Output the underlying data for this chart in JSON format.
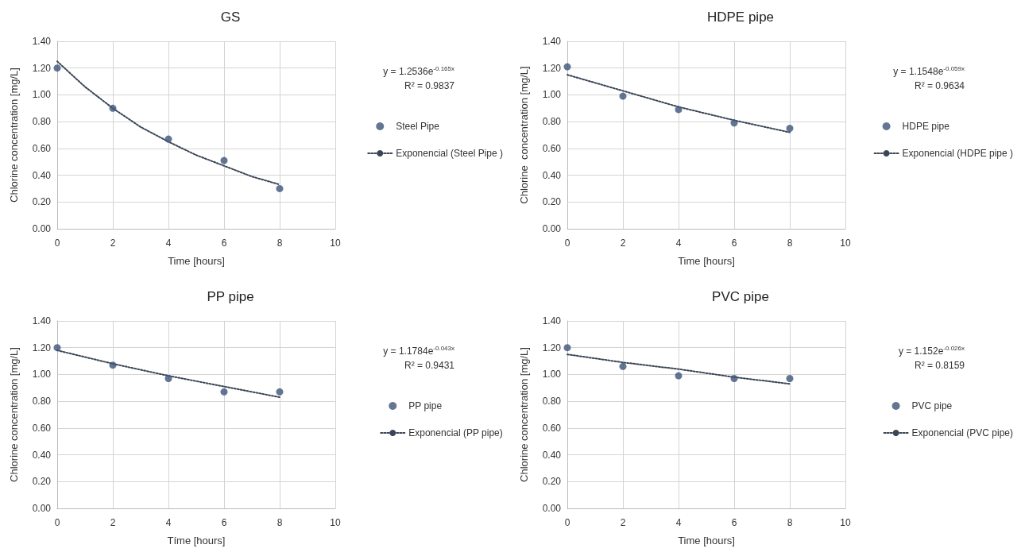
{
  "chart_data": [
    {
      "type": "scatter",
      "title": "GS",
      "xlabel": "Time [hours]",
      "ylabel": "Chlorine concentration [mg/L]",
      "series": [
        {
          "name": "Steel Pipe",
          "color": "#3d5479",
          "type": "scatter",
          "x": [
            0,
            2,
            4,
            6,
            8
          ],
          "values": [
            1.2,
            0.9,
            0.67,
            0.51,
            0.3
          ]
        },
        {
          "name": "Exponencial (Steel Pipe )",
          "color": "#3a4556",
          "type": "line",
          "line_style": "dotted",
          "marker": "none",
          "x": [
            0,
            1,
            2,
            3,
            4,
            5,
            6,
            7,
            8
          ],
          "values": [
            1.25,
            1.06,
            0.9,
            0.76,
            0.65,
            0.55,
            0.47,
            0.39,
            0.33
          ]
        }
      ],
      "xlim": [
        0,
        10
      ],
      "xticks": [
        0,
        2,
        4,
        6,
        8,
        10
      ],
      "ylim": [
        0,
        1.4
      ],
      "yticks": [
        {
          "value": 0,
          "label": "0.00"
        },
        {
          "value": 0.2,
          "label": "0.20"
        },
        {
          "value": 0.4,
          "label": "0.40"
        },
        {
          "value": 0.6,
          "label": "0.60"
        },
        {
          "value": 0.8,
          "label": "0.80"
        },
        {
          "value": 1.0,
          "label": "1.00"
        },
        {
          "value": 1.2,
          "label": "1.20"
        },
        {
          "value": 1.4,
          "label": "1.40"
        }
      ],
      "grid": true,
      "legend": "right",
      "marker": "circle",
      "annotations": [
        "y = 1.2536e$^{-0.165x}$",
        "R² = 0.9837"
      ]
    },
    {
      "type": "scatter",
      "title": "HDPE pipe",
      "xlabel": "Time [hours]",
      "ylabel": "Chlorine  concentration [mg/L]",
      "series": [
        {
          "name": "HDPE pipe",
          "color": "#3d5479",
          "type": "scatter",
          "x": [
            0,
            2,
            4,
            6,
            8
          ],
          "values": [
            1.21,
            0.99,
            0.89,
            0.79,
            0.75
          ]
        },
        {
          "name": "Exponencial (HDPE pipe )",
          "color": "#3a4556",
          "type": "line",
          "line_style": "dotted",
          "marker": "none",
          "x": [
            0,
            2,
            4,
            6,
            8
          ],
          "values": [
            1.15,
            1.03,
            0.91,
            0.81,
            0.72
          ]
        }
      ],
      "xlim": [
        0,
        10
      ],
      "xticks": [
        0,
        2,
        4,
        6,
        8,
        10
      ],
      "ylim": [
        0,
        1.4
      ],
      "yticks": [
        {
          "value": 0,
          "label": "0.00"
        },
        {
          "value": 0.2,
          "label": "0.20"
        },
        {
          "value": 0.4,
          "label": "0.40"
        },
        {
          "value": 0.6,
          "label": "0.60"
        },
        {
          "value": 0.8,
          "label": "0.80"
        },
        {
          "value": 1.0,
          "label": "1.00"
        },
        {
          "value": 1.2,
          "label": "1.20"
        },
        {
          "value": 1.4,
          "label": "1.40"
        }
      ],
      "grid": true,
      "legend": "right",
      "marker": "circle",
      "annotations": [
        "y = 1.1548e$^{-0.059x}$",
        "R² = 0.9634"
      ]
    },
    {
      "type": "scatter",
      "title": "PP pipe",
      "xlabel": "Tíme [hours]",
      "ylabel": "Chlorine concentration [mg/L]",
      "series": [
        {
          "name": "PP pipe",
          "color": "#3d5479",
          "type": "scatter",
          "x": [
            0,
            2,
            4,
            6,
            8
          ],
          "values": [
            1.2,
            1.07,
            0.97,
            0.87,
            0.87
          ]
        },
        {
          "name": "Exponencial (PP pipe)",
          "color": "#3a4556",
          "type": "line",
          "line_style": "dotted",
          "marker": "none",
          "x": [
            0,
            2,
            4,
            6,
            8
          ],
          "values": [
            1.18,
            1.08,
            0.99,
            0.91,
            0.83
          ]
        }
      ],
      "xlim": [
        0,
        10
      ],
      "xticks": [
        0,
        2,
        4,
        6,
        8,
        10
      ],
      "ylim": [
        0,
        1.4
      ],
      "yticks": [
        {
          "value": 0,
          "label": "0.00"
        },
        {
          "value": 0.2,
          "label": "0.20"
        },
        {
          "value": 0.4,
          "label": "0.40"
        },
        {
          "value": 0.6,
          "label": "0.60"
        },
        {
          "value": 0.8,
          "label": "0.80"
        },
        {
          "value": 1.0,
          "label": "1.00"
        },
        {
          "value": 1.2,
          "label": "1.20"
        },
        {
          "value": 1.4,
          "label": "1.40"
        }
      ],
      "grid": true,
      "legend": "right",
      "marker": "circle",
      "annotations": [
        "y = 1.1784e$^{-0.043x}$",
        "R² = 0.9431"
      ]
    },
    {
      "type": "scatter",
      "title": "PVC pipe",
      "xlabel": "Time [hours]",
      "ylabel": "Chlorine concentration [mg/L]",
      "series": [
        {
          "name": "PVC pipe",
          "color": "#3d5479",
          "type": "scatter",
          "x": [
            0,
            2,
            4,
            6,
            8
          ],
          "values": [
            1.2,
            1.06,
            0.99,
            0.97,
            0.97
          ]
        },
        {
          "name": "Exponencial (PVC pipe)",
          "color": "#3a4556",
          "type": "line",
          "line_style": "dotted",
          "marker": "none",
          "x": [
            0,
            2,
            4,
            6,
            8
          ],
          "values": [
            1.15,
            1.09,
            1.04,
            0.98,
            0.93
          ]
        }
      ],
      "xlim": [
        0,
        10
      ],
      "xticks": [
        0,
        2,
        4,
        6,
        8,
        10
      ],
      "ylim": [
        0,
        1.4
      ],
      "yticks": [
        {
          "value": 0,
          "label": "0.00"
        },
        {
          "value": 0.2,
          "label": "0.20"
        },
        {
          "value": 0.4,
          "label": "0.40"
        },
        {
          "value": 0.6,
          "label": "0.60"
        },
        {
          "value": 0.8,
          "label": "0.80"
        },
        {
          "value": 1.0,
          "label": "1.00"
        },
        {
          "value": 1.2,
          "label": "1.20"
        },
        {
          "value": 1.4,
          "label": "1.40"
        }
      ],
      "grid": true,
      "legend": "right",
      "marker": "circle",
      "annotations": [
        "y = 1.152e$^{-0.026x}$",
        "R² = 0.8159"
      ]
    }
  ]
}
